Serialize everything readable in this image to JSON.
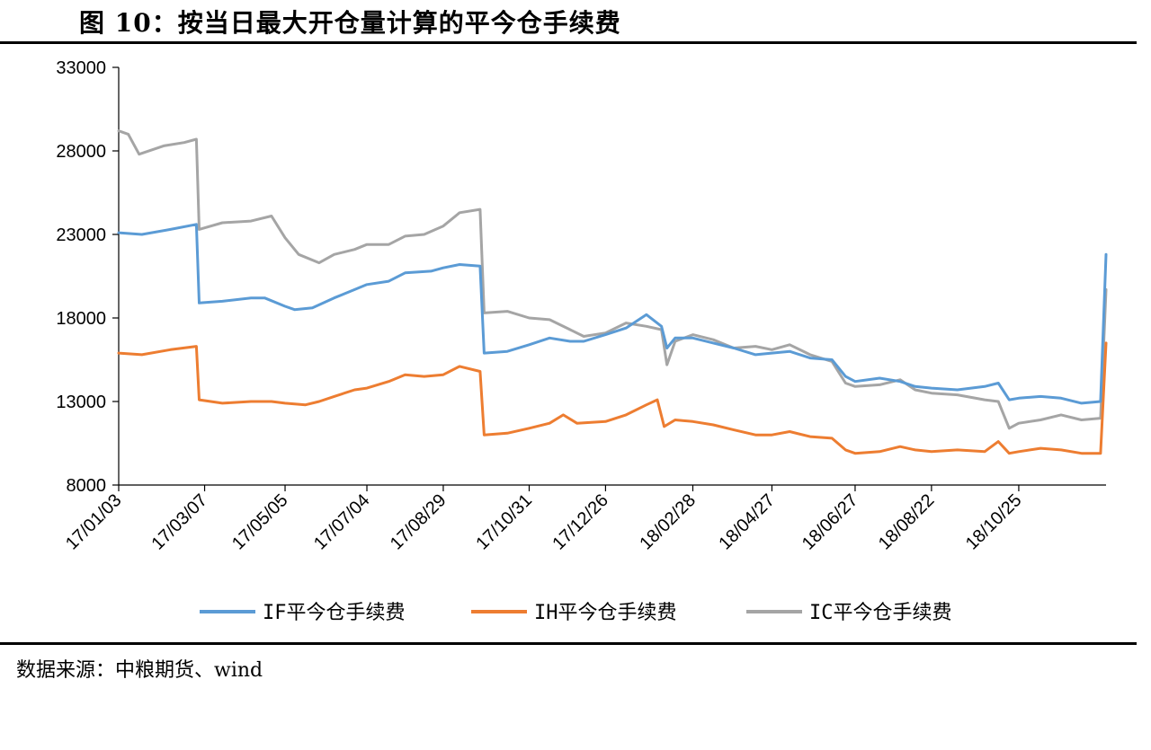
{
  "figure": {
    "title": "图 10：按当日最大开仓量计算的平今仓手续费",
    "source": "数据来源：中粮期货、wind"
  },
  "chart_data": {
    "type": "line",
    "ylim": [
      8000,
      33000
    ],
    "yticks": [
      "8000",
      "13000",
      "18000",
      "23000",
      "28000",
      "33000"
    ],
    "xticks": [
      "17/01/03",
      "17/03/07",
      "17/05/05",
      "17/07/04",
      "17/08/29",
      "17/10/31",
      "17/12/26",
      "18/02/28",
      "18/04/27",
      "18/06/27",
      "18/08/22",
      "18/10/25"
    ],
    "legend_position": "bottom",
    "grid": false,
    "series": [
      {
        "name": "IF平今仓手续费",
        "color": "#5b9bd5",
        "points": [
          [
            "17/01/03",
            23100
          ],
          [
            "17/01/20",
            23000
          ],
          [
            "17/02/10",
            23300
          ],
          [
            "17/03/01",
            23600
          ],
          [
            "17/03/03",
            18900
          ],
          [
            "17/03/20",
            19000
          ],
          [
            "17/04/10",
            19200
          ],
          [
            "17/04/20",
            19200
          ],
          [
            "17/05/05",
            18700
          ],
          [
            "17/05/12",
            18500
          ],
          [
            "17/05/25",
            18600
          ],
          [
            "17/06/10",
            19200
          ],
          [
            "17/06/25",
            19700
          ],
          [
            "17/07/04",
            20000
          ],
          [
            "17/07/20",
            20200
          ],
          [
            "17/08/01",
            20700
          ],
          [
            "17/08/20",
            20800
          ],
          [
            "17/08/29",
            21000
          ],
          [
            "17/09/10",
            21200
          ],
          [
            "17/09/25",
            21100
          ],
          [
            "17/09/28",
            15900
          ],
          [
            "17/10/15",
            16000
          ],
          [
            "17/10/31",
            16400
          ],
          [
            "17/11/15",
            16800
          ],
          [
            "17/11/30",
            16600
          ],
          [
            "17/12/10",
            16600
          ],
          [
            "17/12/26",
            17000
          ],
          [
            "18/01/10",
            17400
          ],
          [
            "18/01/25",
            18200
          ],
          [
            "18/02/05",
            17500
          ],
          [
            "18/02/09",
            16200
          ],
          [
            "18/02/15",
            16800
          ],
          [
            "18/02/28",
            16800
          ],
          [
            "18/03/15",
            16500
          ],
          [
            "18/03/30",
            16200
          ],
          [
            "18/04/15",
            15800
          ],
          [
            "18/04/27",
            15900
          ],
          [
            "18/05/10",
            16000
          ],
          [
            "18/05/25",
            15600
          ],
          [
            "18/06/10",
            15500
          ],
          [
            "18/06/20",
            14500
          ],
          [
            "18/06/27",
            14200
          ],
          [
            "18/07/15",
            14400
          ],
          [
            "18/07/30",
            14200
          ],
          [
            "18/08/10",
            13900
          ],
          [
            "18/08/22",
            13800
          ],
          [
            "18/09/10",
            13700
          ],
          [
            "18/09/30",
            13900
          ],
          [
            "18/10/10",
            14100
          ],
          [
            "18/10/18",
            13100
          ],
          [
            "18/10/25",
            13200
          ],
          [
            "18/11/10",
            13300
          ],
          [
            "18/11/25",
            13200
          ],
          [
            "18/12/10",
            12900
          ],
          [
            "18/12/24",
            13000
          ],
          [
            "18/12/28",
            21800
          ]
        ]
      },
      {
        "name": "IH平今仓手续费",
        "color": "#ed7d31",
        "points": [
          [
            "17/01/03",
            15900
          ],
          [
            "17/01/20",
            15800
          ],
          [
            "17/02/10",
            16100
          ],
          [
            "17/03/01",
            16300
          ],
          [
            "17/03/03",
            13100
          ],
          [
            "17/03/20",
            12900
          ],
          [
            "17/04/10",
            13000
          ],
          [
            "17/04/25",
            13000
          ],
          [
            "17/05/05",
            12900
          ],
          [
            "17/05/20",
            12800
          ],
          [
            "17/05/30",
            13000
          ],
          [
            "17/06/10",
            13300
          ],
          [
            "17/06/25",
            13700
          ],
          [
            "17/07/04",
            13800
          ],
          [
            "17/07/20",
            14200
          ],
          [
            "17/08/01",
            14600
          ],
          [
            "17/08/15",
            14500
          ],
          [
            "17/08/29",
            14600
          ],
          [
            "17/09/10",
            15100
          ],
          [
            "17/09/25",
            14800
          ],
          [
            "17/09/28",
            11000
          ],
          [
            "17/10/15",
            11100
          ],
          [
            "17/10/31",
            11400
          ],
          [
            "17/11/15",
            11700
          ],
          [
            "17/11/25",
            12200
          ],
          [
            "17/12/05",
            11700
          ],
          [
            "17/12/26",
            11800
          ],
          [
            "18/01/10",
            12200
          ],
          [
            "18/01/25",
            12800
          ],
          [
            "18/02/02",
            13100
          ],
          [
            "18/02/07",
            11500
          ],
          [
            "18/02/15",
            11900
          ],
          [
            "18/02/28",
            11800
          ],
          [
            "18/03/15",
            11600
          ],
          [
            "18/03/30",
            11300
          ],
          [
            "18/04/15",
            11000
          ],
          [
            "18/04/27",
            11000
          ],
          [
            "18/05/10",
            11200
          ],
          [
            "18/05/25",
            10900
          ],
          [
            "18/06/10",
            10800
          ],
          [
            "18/06/20",
            10100
          ],
          [
            "18/06/27",
            9900
          ],
          [
            "18/07/15",
            10000
          ],
          [
            "18/07/30",
            10300
          ],
          [
            "18/08/10",
            10100
          ],
          [
            "18/08/22",
            10000
          ],
          [
            "18/09/10",
            10100
          ],
          [
            "18/09/30",
            10000
          ],
          [
            "18/10/10",
            10600
          ],
          [
            "18/10/18",
            9900
          ],
          [
            "18/10/25",
            10000
          ],
          [
            "18/11/10",
            10200
          ],
          [
            "18/11/25",
            10100
          ],
          [
            "18/12/10",
            9900
          ],
          [
            "18/12/24",
            9900
          ],
          [
            "18/12/28",
            16500
          ]
        ]
      },
      {
        "name": "IC平今仓手续费",
        "color": "#a5a5a5",
        "points": [
          [
            "17/01/03",
            29200
          ],
          [
            "17/01/10",
            29000
          ],
          [
            "17/01/18",
            27800
          ],
          [
            "17/02/05",
            28300
          ],
          [
            "17/02/20",
            28500
          ],
          [
            "17/03/01",
            28700
          ],
          [
            "17/03/03",
            23300
          ],
          [
            "17/03/20",
            23700
          ],
          [
            "17/04/10",
            23800
          ],
          [
            "17/04/25",
            24100
          ],
          [
            "17/05/05",
            22800
          ],
          [
            "17/05/15",
            21800
          ],
          [
            "17/05/30",
            21300
          ],
          [
            "17/06/10",
            21800
          ],
          [
            "17/06/25",
            22100
          ],
          [
            "17/07/04",
            22400
          ],
          [
            "17/07/20",
            22400
          ],
          [
            "17/08/01",
            22900
          ],
          [
            "17/08/15",
            23000
          ],
          [
            "17/08/29",
            23500
          ],
          [
            "17/09/10",
            24300
          ],
          [
            "17/09/25",
            24500
          ],
          [
            "17/09/28",
            18300
          ],
          [
            "17/10/15",
            18400
          ],
          [
            "17/10/31",
            18000
          ],
          [
            "17/11/15",
            17900
          ],
          [
            "17/11/30",
            17300
          ],
          [
            "17/12/10",
            16900
          ],
          [
            "17/12/26",
            17100
          ],
          [
            "18/01/10",
            17700
          ],
          [
            "18/01/25",
            17500
          ],
          [
            "18/02/05",
            17300
          ],
          [
            "18/02/09",
            15200
          ],
          [
            "18/02/15",
            16600
          ],
          [
            "18/02/28",
            17000
          ],
          [
            "18/03/15",
            16700
          ],
          [
            "18/03/30",
            16200
          ],
          [
            "18/04/15",
            16300
          ],
          [
            "18/04/27",
            16100
          ],
          [
            "18/05/10",
            16400
          ],
          [
            "18/05/25",
            15800
          ],
          [
            "18/06/10",
            15400
          ],
          [
            "18/06/20",
            14100
          ],
          [
            "18/06/27",
            13900
          ],
          [
            "18/07/15",
            14000
          ],
          [
            "18/07/30",
            14300
          ],
          [
            "18/08/10",
            13700
          ],
          [
            "18/08/22",
            13500
          ],
          [
            "18/09/10",
            13400
          ],
          [
            "18/09/30",
            13100
          ],
          [
            "18/10/10",
            13000
          ],
          [
            "18/10/18",
            11400
          ],
          [
            "18/10/25",
            11700
          ],
          [
            "18/11/10",
            11900
          ],
          [
            "18/11/25",
            12200
          ],
          [
            "18/12/10",
            11900
          ],
          [
            "18/12/24",
            12000
          ],
          [
            "18/12/28",
            19700
          ]
        ]
      }
    ]
  }
}
